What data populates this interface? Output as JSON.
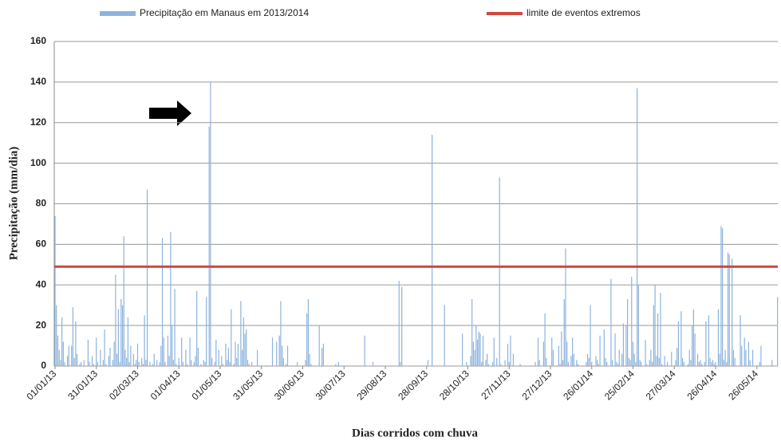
{
  "chart_data": {
    "type": "bar",
    "xlabel": "Dias corridos com chuva",
    "ylabel": "Precipitação (mm/dia)",
    "series": [
      {
        "name": "Precipitação em Manaus em 2013/2014",
        "color": "#8db3de",
        "values": [
          74,
          30,
          15,
          8,
          3,
          24,
          12,
          2,
          0,
          5,
          10,
          0,
          10,
          29,
          4,
          22,
          6,
          0,
          1,
          2,
          0,
          3,
          0,
          0,
          13,
          2,
          0,
          5,
          1,
          0,
          14,
          2,
          0,
          8,
          0,
          3,
          18,
          1,
          0,
          5,
          9,
          0,
          3,
          12,
          45,
          6,
          28,
          2,
          33,
          30,
          64,
          8,
          4,
          24,
          2,
          10,
          0,
          6,
          1,
          3,
          11,
          2,
          0,
          4,
          1,
          25,
          3,
          87,
          0,
          2,
          0,
          1,
          6,
          0,
          3,
          0,
          2,
          10,
          63,
          14,
          2,
          0,
          15,
          5,
          66,
          20,
          3,
          38,
          1,
          0,
          4,
          0,
          14,
          2,
          0,
          8,
          1,
          0,
          14,
          3,
          0,
          2,
          5,
          37,
          9,
          0,
          1,
          0,
          3,
          2,
          34,
          0,
          118,
          140,
          4,
          0,
          2,
          13,
          0,
          8,
          0,
          5,
          1,
          0,
          11,
          3,
          9,
          2,
          28,
          0,
          1,
          12,
          4,
          11,
          0,
          32,
          8,
          24,
          16,
          18,
          3,
          1,
          0,
          2,
          0,
          0,
          0,
          8,
          0,
          0,
          0,
          0,
          0,
          0,
          0,
          0,
          0,
          0,
          14,
          0,
          0,
          12,
          0,
          15,
          32,
          10,
          4,
          0,
          1,
          10,
          0,
          0,
          0,
          0,
          0,
          0,
          2,
          0,
          0,
          0,
          0,
          0,
          3,
          26,
          33,
          6,
          1,
          0,
          0,
          0,
          0,
          0,
          20,
          0,
          9,
          11,
          0,
          0,
          0,
          0,
          0,
          0,
          0,
          0,
          1,
          0,
          2,
          0,
          0,
          0,
          0,
          0,
          0,
          0,
          0,
          0,
          0,
          0,
          0,
          0,
          0,
          0,
          0,
          0,
          0,
          15,
          0,
          0,
          0,
          0,
          0,
          2,
          0,
          0,
          0,
          0,
          0,
          0,
          0,
          0,
          0,
          0,
          0,
          0,
          0,
          0,
          0,
          0,
          0,
          0,
          42,
          2,
          39,
          0,
          0,
          0,
          0,
          0,
          0,
          0,
          0,
          0,
          0,
          0,
          0,
          0,
          0,
          0,
          0,
          0,
          0,
          3,
          0,
          0,
          114,
          0,
          0,
          0,
          0,
          0,
          0,
          0,
          0,
          30,
          0,
          0,
          0,
          0,
          0,
          0,
          0,
          0,
          0,
          0,
          0,
          0,
          16,
          0,
          0,
          2,
          0,
          0,
          5,
          33,
          12,
          8,
          20,
          13,
          17,
          16,
          2,
          15,
          0,
          3,
          6,
          1,
          0,
          0,
          2,
          14,
          0,
          4,
          0,
          93,
          1,
          0,
          0,
          3,
          0,
          11,
          2,
          15,
          0,
          6,
          0,
          0,
          0,
          0,
          1,
          0,
          0,
          0,
          0,
          0,
          0,
          0,
          0,
          0,
          0,
          2,
          0,
          14,
          3,
          0,
          0,
          12,
          26,
          4,
          0,
          0,
          0,
          14,
          8,
          0,
          0,
          0,
          10,
          1,
          17,
          3,
          33,
          58,
          12,
          2,
          0,
          5,
          14,
          6,
          0,
          3,
          1,
          0,
          0,
          0,
          0,
          0,
          2,
          6,
          4,
          30,
          2,
          0,
          0,
          5,
          3,
          1,
          15,
          0,
          0,
          18,
          4,
          2,
          0,
          0,
          43,
          3,
          0,
          16,
          2,
          1,
          8,
          0,
          6,
          21,
          0,
          20,
          33,
          4,
          3,
          44,
          12,
          6,
          2,
          137,
          40,
          3,
          2,
          0,
          0,
          13,
          1,
          0,
          3,
          8,
          2,
          30,
          40,
          5,
          26,
          4,
          36,
          1,
          0,
          5,
          0,
          2,
          0,
          0,
          7,
          0,
          0,
          3,
          9,
          22,
          0,
          27,
          4,
          2,
          0,
          0,
          1,
          8,
          3,
          20,
          28,
          16,
          0,
          6,
          2,
          3,
          1,
          0,
          2,
          22,
          0,
          25,
          4,
          2,
          3,
          1,
          2,
          0,
          28,
          6,
          69,
          68,
          3,
          8,
          2,
          56,
          55,
          0,
          53,
          8,
          4,
          0,
          0,
          0,
          25,
          10,
          0,
          14,
          8,
          0,
          12,
          3,
          0,
          8,
          0,
          0,
          0,
          0,
          2,
          10,
          0,
          0,
          0,
          0,
          0,
          0,
          0,
          3,
          0,
          0,
          0,
          34,
          0
        ]
      }
    ],
    "reference_line": {
      "name": "limite de eventos extremos",
      "color": "#d0483e",
      "value": 49
    },
    "categories": [
      "01/01/13",
      null,
      null,
      null,
      null,
      null,
      null,
      null,
      null,
      null,
      null,
      null,
      null,
      null,
      null,
      null,
      null,
      null,
      null,
      null,
      null,
      null,
      null,
      null,
      null,
      null,
      null,
      null,
      null,
      null,
      "31/01/13",
      null,
      null,
      null,
      null,
      null,
      null,
      null,
      null,
      null,
      null,
      null,
      null,
      null,
      null,
      null,
      null,
      null,
      null,
      null,
      null,
      null,
      null,
      null,
      null,
      null,
      null,
      null,
      null,
      null,
      "02/03/13",
      null,
      null,
      null,
      null,
      null,
      null,
      null,
      null,
      null,
      null,
      null,
      null,
      null,
      null,
      null,
      null,
      null,
      null,
      null,
      null,
      null,
      null,
      null,
      null,
      null,
      null,
      null,
      null,
      null,
      "01/04/13",
      null,
      null,
      null,
      null,
      null,
      null,
      null,
      null,
      null,
      null,
      null,
      null,
      null,
      null,
      null,
      null,
      null,
      null,
      null,
      null,
      null,
      null,
      null,
      null,
      null,
      null,
      null,
      null,
      null,
      "01/05/13",
      null,
      null,
      null,
      null,
      null,
      null,
      null,
      null,
      null,
      null,
      null,
      null,
      null,
      null,
      null,
      null,
      null,
      null,
      null,
      null,
      null,
      null,
      null,
      null,
      null,
      null,
      null,
      null,
      null,
      "31/05/13",
      null,
      null,
      null,
      null,
      null,
      null,
      null,
      null,
      null,
      null,
      null,
      null,
      null,
      null,
      null,
      null,
      null,
      null,
      null,
      null,
      null,
      null,
      null,
      null,
      null,
      null,
      null,
      null,
      null,
      "30/06/13",
      null,
      null,
      null,
      null,
      null,
      null,
      null,
      null,
      null,
      null,
      null,
      null,
      null,
      null,
      null,
      null,
      null,
      null,
      null,
      null,
      null,
      null,
      null,
      null,
      null,
      null,
      null,
      null,
      null,
      "30/07/13",
      null,
      null,
      null,
      null,
      null,
      null,
      null,
      null,
      null,
      null,
      null,
      null,
      null,
      null,
      null,
      null,
      null,
      null,
      null,
      null,
      null,
      null,
      null,
      null,
      null,
      null,
      null,
      null,
      null,
      "29/08/13",
      null,
      null,
      null,
      null,
      null,
      null,
      null,
      null,
      null,
      null,
      null,
      null,
      null,
      null,
      null,
      null,
      null,
      null,
      null,
      null,
      null,
      null,
      null,
      null,
      null,
      null,
      null,
      null,
      null,
      "28/09/13",
      null,
      null,
      null,
      null,
      null,
      null,
      null,
      null,
      null,
      null,
      null,
      null,
      null,
      null,
      null,
      null,
      null,
      null,
      null,
      null,
      null,
      null,
      null,
      null,
      null,
      null,
      null,
      null,
      null,
      "28/10/13",
      null,
      null,
      null,
      null,
      null,
      null,
      null,
      null,
      null,
      null,
      null,
      null,
      null,
      null,
      null,
      null,
      null,
      null,
      null,
      null,
      null,
      null,
      null,
      null,
      null,
      null,
      null,
      null,
      null,
      "27/11/13",
      null,
      null,
      null,
      null,
      null,
      null,
      null,
      null,
      null,
      null,
      null,
      null,
      null,
      null,
      null,
      null,
      null,
      null,
      null,
      null,
      null,
      null,
      null,
      null,
      null,
      null,
      null,
      null,
      null,
      "27/12/13",
      null,
      null,
      null,
      null,
      null,
      null,
      null,
      null,
      null,
      null,
      null,
      null,
      null,
      null,
      null,
      null,
      null,
      null,
      null,
      null,
      null,
      null,
      null,
      null,
      null,
      null,
      null,
      null,
      null,
      "26/01/14",
      null,
      null,
      null,
      null,
      null,
      null,
      null,
      null,
      null,
      null,
      null,
      null,
      null,
      null,
      null,
      null,
      null,
      null,
      null,
      null,
      null,
      null,
      null,
      null,
      null,
      null,
      null,
      null,
      null,
      "25/02/14",
      null,
      null,
      null,
      null,
      null,
      null,
      null,
      null,
      null,
      null,
      null,
      null,
      null,
      null,
      null,
      null,
      null,
      null,
      null,
      null,
      null,
      null,
      null,
      null,
      null,
      null,
      null,
      null,
      null,
      "27/03/14",
      null,
      null,
      null,
      null,
      null,
      null,
      null,
      null,
      null,
      null,
      null,
      null,
      null,
      null,
      null,
      null,
      null,
      null,
      null,
      null,
      null,
      null,
      null,
      null,
      null,
      null,
      null,
      null,
      null,
      "26/04/14",
      null,
      null,
      null,
      null,
      null,
      null,
      null,
      null,
      null,
      null,
      null,
      null,
      null,
      null,
      null,
      null,
      null,
      null,
      null,
      null,
      null,
      null,
      null,
      null,
      null,
      null,
      null,
      null,
      null,
      "26/05/14",
      null,
      null,
      null,
      null,
      null,
      null,
      null,
      null,
      null,
      null,
      null,
      null,
      null,
      null,
      null,
      null
    ],
    "ylim": [
      0,
      160
    ],
    "yticks": [
      0,
      20,
      40,
      60,
      80,
      100,
      120,
      140,
      160
    ],
    "grid": true
  }
}
